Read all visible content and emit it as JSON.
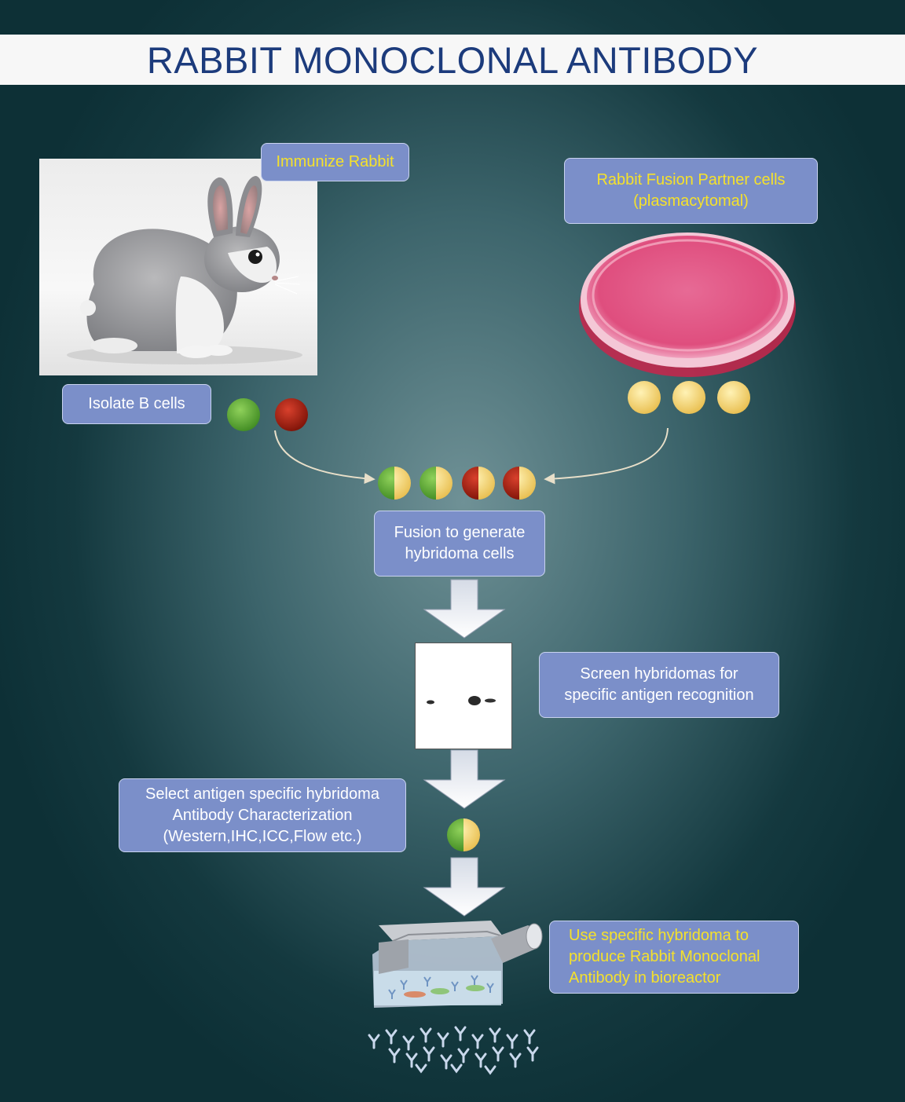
{
  "title": "RABBIT MONOCLONAL ANTIBODY",
  "steps": {
    "immunize": "Immunize Rabbit",
    "fusion_partner": "Rabbit Fusion Partner cells\n(plasmacytomal)",
    "isolate": "Isolate B cells",
    "fusion": "Fusion to generate\nhybridoma cells",
    "screen": "Screen hybridomas for\nspecific antigen recognition",
    "select": "Select antigen specific hybridoma\nAntibody Characterization\n(Western,IHC,ICC,Flow etc.)",
    "produce": "Use specific hybridoma to\nproduce Rabbit Monoclonal\nAntibody in bioreactor"
  },
  "colors": {
    "box_fill": "#7b8fc9",
    "title_text": "#1c3b7c",
    "highlight_text": "#f5e12b",
    "b_cell_green": "#5aa431",
    "b_cell_red": "#a01b0e",
    "partner_yellow": "#f2cf69",
    "dish_pink": "#e0507f"
  }
}
